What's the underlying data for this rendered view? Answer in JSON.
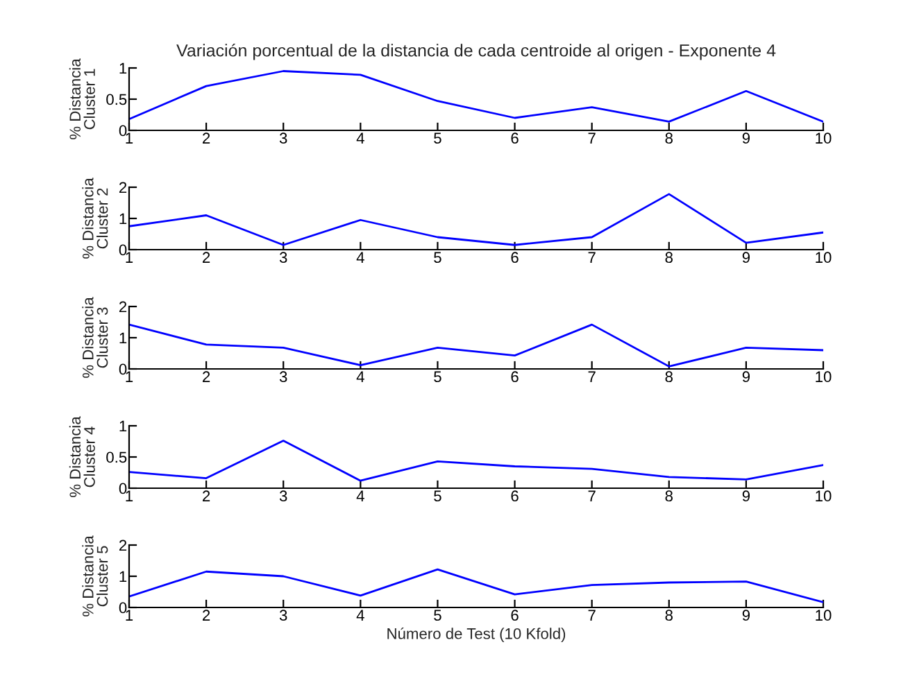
{
  "chart_data": [
    {
      "type": "line",
      "title": "Variación porcentual de la distancia de cada centroide al origen - Exponente 4",
      "ylabel": "% Distancia\nCluster 1",
      "x": [
        1,
        2,
        3,
        4,
        5,
        6,
        7,
        8,
        9,
        10
      ],
      "series": [
        {
          "color": "#0000ff",
          "values": [
            0.18,
            0.71,
            0.95,
            0.89,
            0.47,
            0.2,
            0.37,
            0.14,
            0.63,
            0.14
          ]
        }
      ],
      "xlim": [
        1,
        10
      ],
      "xticks": [
        1,
        2,
        3,
        4,
        5,
        6,
        7,
        8,
        9,
        10
      ],
      "ylim": [
        0,
        1
      ],
      "yticks": [
        0,
        0.5,
        1
      ],
      "grid": false
    },
    {
      "type": "line",
      "ylabel": "% Distancia\nCluster 2",
      "x": [
        1,
        2,
        3,
        4,
        5,
        6,
        7,
        8,
        9,
        10
      ],
      "series": [
        {
          "color": "#0000ff",
          "values": [
            0.75,
            1.1,
            0.15,
            0.95,
            0.4,
            0.15,
            0.4,
            1.78,
            0.22,
            0.55
          ]
        }
      ],
      "xlim": [
        1,
        10
      ],
      "xticks": [
        1,
        2,
        3,
        4,
        5,
        6,
        7,
        8,
        9,
        10
      ],
      "ylim": [
        0,
        2
      ],
      "yticks": [
        0,
        1,
        2
      ],
      "grid": false
    },
    {
      "type": "line",
      "ylabel": "% Distancia\nCluster 3",
      "x": [
        1,
        2,
        3,
        4,
        5,
        6,
        7,
        8,
        9,
        10
      ],
      "series": [
        {
          "color": "#0000ff",
          "values": [
            1.42,
            0.78,
            0.68,
            0.12,
            0.68,
            0.43,
            1.42,
            0.08,
            0.68,
            0.6
          ]
        }
      ],
      "xlim": [
        1,
        10
      ],
      "xticks": [
        1,
        2,
        3,
        4,
        5,
        6,
        7,
        8,
        9,
        10
      ],
      "ylim": [
        0,
        2
      ],
      "yticks": [
        0,
        1,
        2
      ],
      "grid": false
    },
    {
      "type": "line",
      "ylabel": "% Distancia\nCluster 4",
      "x": [
        1,
        2,
        3,
        4,
        5,
        6,
        7,
        8,
        9,
        10
      ],
      "series": [
        {
          "color": "#0000ff",
          "values": [
            0.26,
            0.16,
            0.76,
            0.12,
            0.43,
            0.35,
            0.31,
            0.18,
            0.14,
            0.37
          ]
        }
      ],
      "xlim": [
        1,
        10
      ],
      "xticks": [
        1,
        2,
        3,
        4,
        5,
        6,
        7,
        8,
        9,
        10
      ],
      "ylim": [
        0,
        1
      ],
      "yticks": [
        0,
        0.5,
        1
      ],
      "grid": false
    },
    {
      "type": "line",
      "xlabel": "Número de Test (10 Kfold)",
      "ylabel": "% Distancia\nCluster 5",
      "x": [
        1,
        2,
        3,
        4,
        5,
        6,
        7,
        8,
        9,
        10
      ],
      "series": [
        {
          "color": "#0000ff",
          "values": [
            0.35,
            1.15,
            1.0,
            0.38,
            1.22,
            0.42,
            0.72,
            0.8,
            0.83,
            0.17
          ]
        }
      ],
      "xlim": [
        1,
        10
      ],
      "xticks": [
        1,
        2,
        3,
        4,
        5,
        6,
        7,
        8,
        9,
        10
      ],
      "ylim": [
        0,
        2
      ],
      "yticks": [
        0,
        1,
        2
      ],
      "grid": false
    }
  ]
}
